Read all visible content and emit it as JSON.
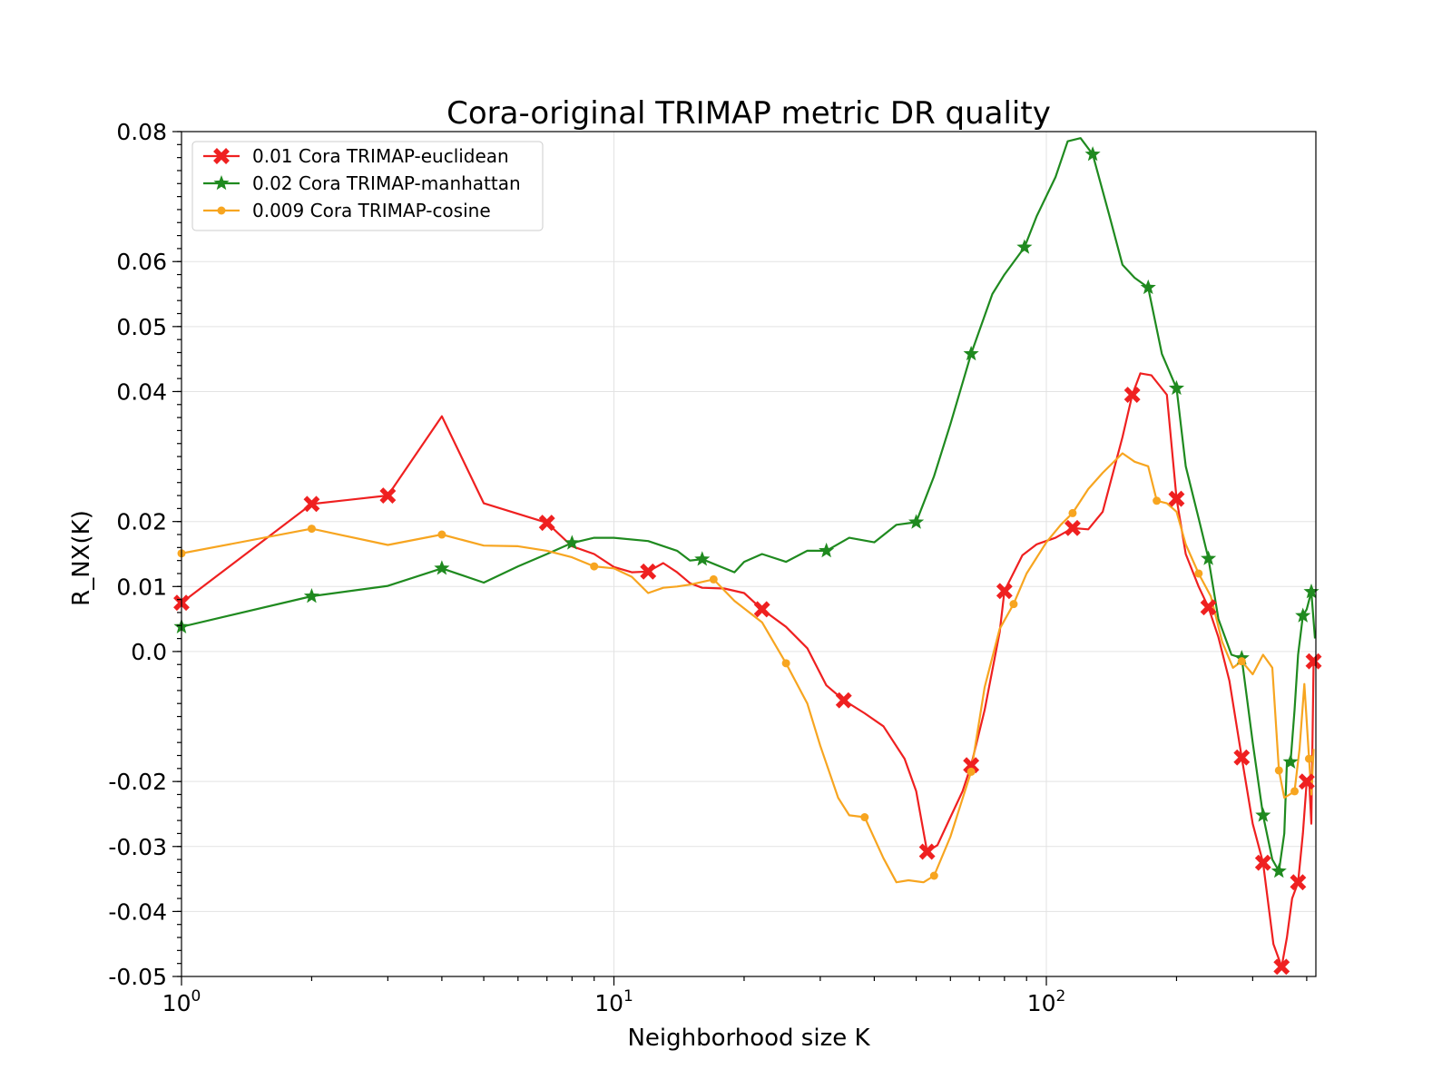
{
  "chart_data": {
    "type": "line",
    "title": "Cora-original TRIMAP metric DR quality",
    "xlabel": "Neighborhood size K",
    "ylabel": "R_NX(K)",
    "xscale": "log",
    "xlim": [
      1,
      420
    ],
    "ylim": [
      -0.05,
      0.08
    ],
    "x_ticks": [
      {
        "value": 1,
        "base": "10",
        "exp": "0"
      },
      {
        "value": 10,
        "base": "10",
        "exp": "1"
      },
      {
        "value": 100,
        "base": "10",
        "exp": "2"
      }
    ],
    "y_ticks": [
      {
        "value": 0.08,
        "label": "0.08"
      },
      {
        "value": 0.06,
        "label": "0.06"
      },
      {
        "value": 0.05,
        "label": "0.05"
      },
      {
        "value": 0.04,
        "label": "0.04"
      },
      {
        "value": 0.02,
        "label": "0.02"
      },
      {
        "value": 0.01,
        "label": "0.01"
      },
      {
        "value": 0.0,
        "label": "0.0"
      },
      {
        "value": -0.02,
        "label": "-0.02"
      },
      {
        "value": -0.03,
        "label": "-0.03"
      },
      {
        "value": -0.04,
        "label": "-0.04"
      },
      {
        "value": -0.05,
        "label": "-0.05"
      }
    ],
    "grid": true,
    "legend_position": "top-left",
    "series": [
      {
        "name": "0.01 Cora TRIMAP-euclidean",
        "color": "#ef2020",
        "marker": "x",
        "points": [
          [
            1,
            0.0075
          ],
          [
            2,
            0.0227
          ],
          [
            3,
            0.024
          ],
          [
            4,
            0.0362
          ],
          [
            5,
            0.0228
          ],
          [
            7,
            0.0198
          ],
          [
            8,
            0.0162
          ],
          [
            9,
            0.015
          ],
          [
            10,
            0.013
          ],
          [
            11,
            0.0122
          ],
          [
            12,
            0.0123
          ],
          [
            13,
            0.0136
          ],
          [
            14,
            0.0122
          ],
          [
            15,
            0.0105
          ],
          [
            16,
            0.0098
          ],
          [
            18,
            0.0097
          ],
          [
            20,
            0.009
          ],
          [
            22,
            0.0065
          ],
          [
            25,
            0.0038
          ],
          [
            28,
            0.0005
          ],
          [
            31,
            -0.0052
          ],
          [
            34,
            -0.0075
          ],
          [
            38,
            -0.0095
          ],
          [
            42,
            -0.0115
          ],
          [
            47,
            -0.0165
          ],
          [
            50,
            -0.0215
          ],
          [
            53,
            -0.0308
          ],
          [
            56,
            -0.0298
          ],
          [
            60,
            -0.0255
          ],
          [
            64,
            -0.0215
          ],
          [
            67,
            -0.0175
          ],
          [
            72,
            -0.009
          ],
          [
            78,
            0.003
          ],
          [
            80,
            0.0093
          ],
          [
            88,
            0.0148
          ],
          [
            95,
            0.0165
          ],
          [
            105,
            0.0175
          ],
          [
            115,
            0.019
          ],
          [
            125,
            0.0188
          ],
          [
            135,
            0.0215
          ],
          [
            150,
            0.033
          ],
          [
            158,
            0.0395
          ],
          [
            165,
            0.0428
          ],
          [
            175,
            0.0425
          ],
          [
            190,
            0.0395
          ],
          [
            200,
            0.0235
          ],
          [
            210,
            0.015
          ],
          [
            225,
            0.01
          ],
          [
            237,
            0.0068
          ],
          [
            250,
            0.0022
          ],
          [
            265,
            -0.0045
          ],
          [
            283,
            -0.0163
          ],
          [
            300,
            -0.0265
          ],
          [
            317,
            -0.0325
          ],
          [
            335,
            -0.045
          ],
          [
            350,
            -0.0485
          ],
          [
            360,
            -0.044
          ],
          [
            370,
            -0.038
          ],
          [
            382,
            -0.0355
          ],
          [
            392,
            -0.028
          ],
          [
            400,
            -0.02
          ],
          [
            405,
            -0.0195
          ],
          [
            410,
            -0.0265
          ],
          [
            415,
            -0.0015
          ]
        ],
        "markers": [
          [
            1,
            0.0075
          ],
          [
            2,
            0.0227
          ],
          [
            3,
            0.024
          ],
          [
            7,
            0.0198
          ],
          [
            12,
            0.0123
          ],
          [
            22,
            0.0065
          ],
          [
            34,
            -0.0075
          ],
          [
            53,
            -0.0308
          ],
          [
            67,
            -0.0175
          ],
          [
            80,
            0.0093
          ],
          [
            115,
            0.019
          ],
          [
            158,
            0.0395
          ],
          [
            200,
            0.0235
          ],
          [
            237,
            0.0068
          ],
          [
            283,
            -0.0163
          ],
          [
            317,
            -0.0325
          ],
          [
            350,
            -0.0485
          ],
          [
            382,
            -0.0355
          ],
          [
            400,
            -0.02
          ],
          [
            415,
            -0.0015
          ]
        ]
      },
      {
        "name": "0.02 Cora TRIMAP-manhattan",
        "color": "#1f8a1f",
        "marker": "star",
        "points": [
          [
            1,
            0.0038
          ],
          [
            2,
            0.0085
          ],
          [
            3,
            0.0101
          ],
          [
            4,
            0.0128
          ],
          [
            5,
            0.0106
          ],
          [
            6,
            0.0131
          ],
          [
            7,
            0.015
          ],
          [
            8,
            0.0167
          ],
          [
            9,
            0.0175
          ],
          [
            10,
            0.0175
          ],
          [
            12,
            0.017
          ],
          [
            14,
            0.0155
          ],
          [
            15,
            0.014
          ],
          [
            16,
            0.0142
          ],
          [
            19,
            0.0122
          ],
          [
            20,
            0.0138
          ],
          [
            22,
            0.015
          ],
          [
            25,
            0.0138
          ],
          [
            28,
            0.0155
          ],
          [
            31,
            0.0155
          ],
          [
            35,
            0.0175
          ],
          [
            40,
            0.0168
          ],
          [
            45,
            0.0195
          ],
          [
            50,
            0.0199
          ],
          [
            55,
            0.027
          ],
          [
            60,
            0.035
          ],
          [
            67,
            0.0458
          ],
          [
            75,
            0.055
          ],
          [
            80,
            0.058
          ],
          [
            89,
            0.0622
          ],
          [
            95,
            0.067
          ],
          [
            105,
            0.073
          ],
          [
            112,
            0.0785
          ],
          [
            120,
            0.079
          ],
          [
            128,
            0.0765
          ],
          [
            140,
            0.067
          ],
          [
            150,
            0.0595
          ],
          [
            160,
            0.0575
          ],
          [
            172,
            0.056
          ],
          [
            185,
            0.0458
          ],
          [
            200,
            0.0405
          ],
          [
            210,
            0.0285
          ],
          [
            225,
            0.0205
          ],
          [
            237,
            0.0143
          ],
          [
            250,
            0.005
          ],
          [
            268,
            -0.0005
          ],
          [
            283,
            -0.001
          ],
          [
            300,
            -0.014
          ],
          [
            317,
            -0.0252
          ],
          [
            333,
            -0.032
          ],
          [
            345,
            -0.0338
          ],
          [
            355,
            -0.028
          ],
          [
            360,
            -0.017
          ],
          [
            367,
            -0.017
          ],
          [
            375,
            -0.009
          ],
          [
            382,
            -0.0005
          ],
          [
            392,
            0.0055
          ],
          [
            400,
            0.0065
          ],
          [
            410,
            0.0092
          ],
          [
            418,
            0.002
          ]
        ],
        "markers": [
          [
            1,
            0.0038
          ],
          [
            2,
            0.0085
          ],
          [
            4,
            0.0128
          ],
          [
            8,
            0.0167
          ],
          [
            16,
            0.0142
          ],
          [
            31,
            0.0155
          ],
          [
            50,
            0.0199
          ],
          [
            67,
            0.0458
          ],
          [
            89,
            0.0622
          ],
          [
            128,
            0.0765
          ],
          [
            172,
            0.056
          ],
          [
            200,
            0.0405
          ],
          [
            237,
            0.0143
          ],
          [
            283,
            -0.001
          ],
          [
            317,
            -0.0252
          ],
          [
            345,
            -0.0338
          ],
          [
            367,
            -0.017
          ],
          [
            392,
            0.0055
          ],
          [
            410,
            0.0092
          ]
        ]
      },
      {
        "name": "0.009 Cora TRIMAP-cosine",
        "color": "#f7a520",
        "marker": "dot",
        "points": [
          [
            1,
            0.0151
          ],
          [
            2,
            0.0189
          ],
          [
            3,
            0.0164
          ],
          [
            4,
            0.018
          ],
          [
            5,
            0.0163
          ],
          [
            6,
            0.0162
          ],
          [
            7,
            0.0155
          ],
          [
            8,
            0.0145
          ],
          [
            9,
            0.0131
          ],
          [
            10,
            0.0128
          ],
          [
            11,
            0.0115
          ],
          [
            12,
            0.009
          ],
          [
            13,
            0.0098
          ],
          [
            14,
            0.01
          ],
          [
            15,
            0.0103
          ],
          [
            17,
            0.0111
          ],
          [
            19,
            0.0078
          ],
          [
            22,
            0.0045
          ],
          [
            25,
            -0.0018
          ],
          [
            28,
            -0.008
          ],
          [
            30,
            -0.0145
          ],
          [
            33,
            -0.0225
          ],
          [
            35,
            -0.0252
          ],
          [
            38,
            -0.0255
          ],
          [
            42,
            -0.0318
          ],
          [
            45,
            -0.0355
          ],
          [
            48,
            -0.0352
          ],
          [
            52,
            -0.0355
          ],
          [
            55,
            -0.0345
          ],
          [
            60,
            -0.0285
          ],
          [
            67,
            -0.0185
          ],
          [
            72,
            -0.0055
          ],
          [
            78,
            0.0035
          ],
          [
            84,
            0.0073
          ],
          [
            90,
            0.012
          ],
          [
            100,
            0.0168
          ],
          [
            108,
            0.0195
          ],
          [
            115,
            0.0213
          ],
          [
            125,
            0.025
          ],
          [
            135,
            0.0275
          ],
          [
            150,
            0.0305
          ],
          [
            160,
            0.0292
          ],
          [
            172,
            0.0285
          ],
          [
            180,
            0.0232
          ],
          [
            190,
            0.0228
          ],
          [
            200,
            0.0215
          ],
          [
            210,
            0.0165
          ],
          [
            225,
            0.012
          ],
          [
            240,
            0.0085
          ],
          [
            255,
            0.0015
          ],
          [
            270,
            -0.0025
          ],
          [
            283,
            -0.0015
          ],
          [
            300,
            -0.0035
          ],
          [
            317,
            -0.0005
          ],
          [
            333,
            -0.0025
          ],
          [
            345,
            -0.0183
          ],
          [
            355,
            -0.0225
          ],
          [
            365,
            -0.022
          ],
          [
            375,
            -0.0215
          ],
          [
            385,
            -0.015
          ],
          [
            395,
            -0.005
          ],
          [
            405,
            -0.0165
          ],
          [
            410,
            -0.022
          ],
          [
            415,
            -0.015
          ]
        ],
        "markers": [
          [
            1,
            0.0151
          ],
          [
            2,
            0.0189
          ],
          [
            4,
            0.018
          ],
          [
            9,
            0.0131
          ],
          [
            17,
            0.0111
          ],
          [
            25,
            -0.0018
          ],
          [
            38,
            -0.0255
          ],
          [
            55,
            -0.0345
          ],
          [
            67,
            -0.0185
          ],
          [
            84,
            0.0073
          ],
          [
            115,
            0.0213
          ],
          [
            180,
            0.0232
          ],
          [
            225,
            0.012
          ],
          [
            283,
            -0.0015
          ],
          [
            345,
            -0.0183
          ],
          [
            375,
            -0.0215
          ],
          [
            405,
            -0.0165
          ]
        ]
      }
    ]
  }
}
